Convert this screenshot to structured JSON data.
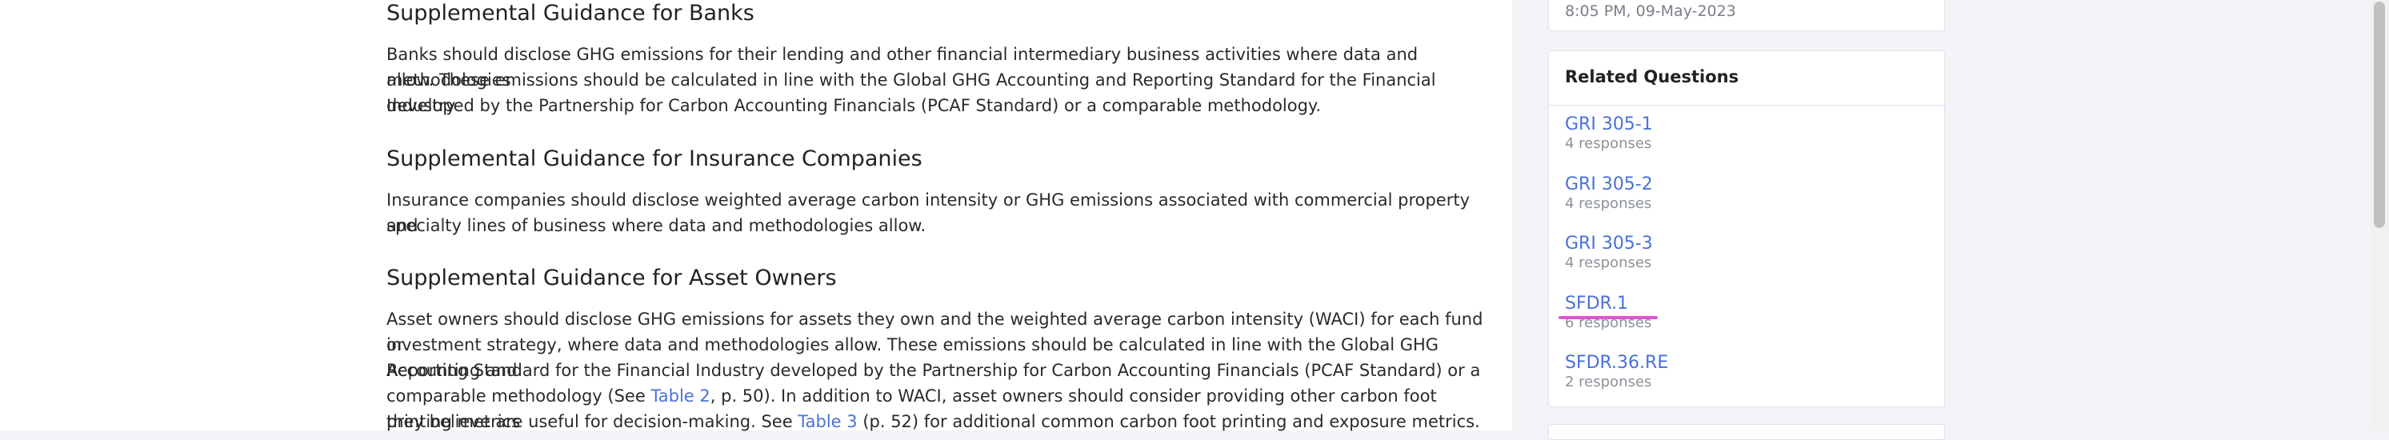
{
  "main": {
    "sections": [
      {
        "heading": "Supplemental Guidance for Banks",
        "lines": [
          "Banks should disclose GHG emissions for their lending and other financial intermediary business activities where data and methodologies",
          "allow. These emissions should be calculated in line with the Global GHG Accounting and Reporting Standard for the Financial Industry",
          "developed by the Partnership for Carbon Accounting Financials (PCAF Standard) or a comparable methodology."
        ]
      },
      {
        "heading": "Supplemental Guidance for Insurance Companies",
        "lines": [
          "Insurance companies should disclose weighted average carbon intensity or GHG emissions associated with commercial property and",
          "specialty lines of business where data and methodologies allow."
        ]
      },
      {
        "heading": "Supplemental Guidance for Asset Owners",
        "lines": [
          "Asset owners should disclose GHG emissions for assets they own and the weighted average carbon intensity (WACI) for each fund or",
          "investment strategy, where data and methodologies allow. These emissions should be calculated in line with the Global GHG Accounting and",
          "Reporting Standard for the Financial Industry developed by the Partnership for Carbon Accounting Financials (PCAF Standard) or a"
        ],
        "line4": {
          "before": "comparable methodology (See ",
          "link": "Table 2",
          "after": ", p. 50). In addition to WACI, asset owners should consider providing other carbon foot printing metrics"
        },
        "line5": {
          "before": "they believe are useful for decision-making. See ",
          "link": "Table 3",
          "after": " (p. 52) for additional common carbon foot printing and exposure metrics."
        }
      }
    ]
  },
  "sidebar": {
    "timestamp": "8:05 PM, 09-May-2023",
    "related": {
      "title": "Related Questions",
      "items": [
        {
          "label": "GRI 305-1",
          "count": "4 responses"
        },
        {
          "label": "GRI 305-2",
          "count": "4 responses"
        },
        {
          "label": "GRI 305-3",
          "count": "4 responses"
        },
        {
          "label": "SFDR.1",
          "count": "6 responses"
        },
        {
          "label": "SFDR.36.RE",
          "count": "2 responses"
        }
      ]
    }
  },
  "colors": {
    "link": "#4a71d8",
    "highlight": "#e055d2"
  }
}
